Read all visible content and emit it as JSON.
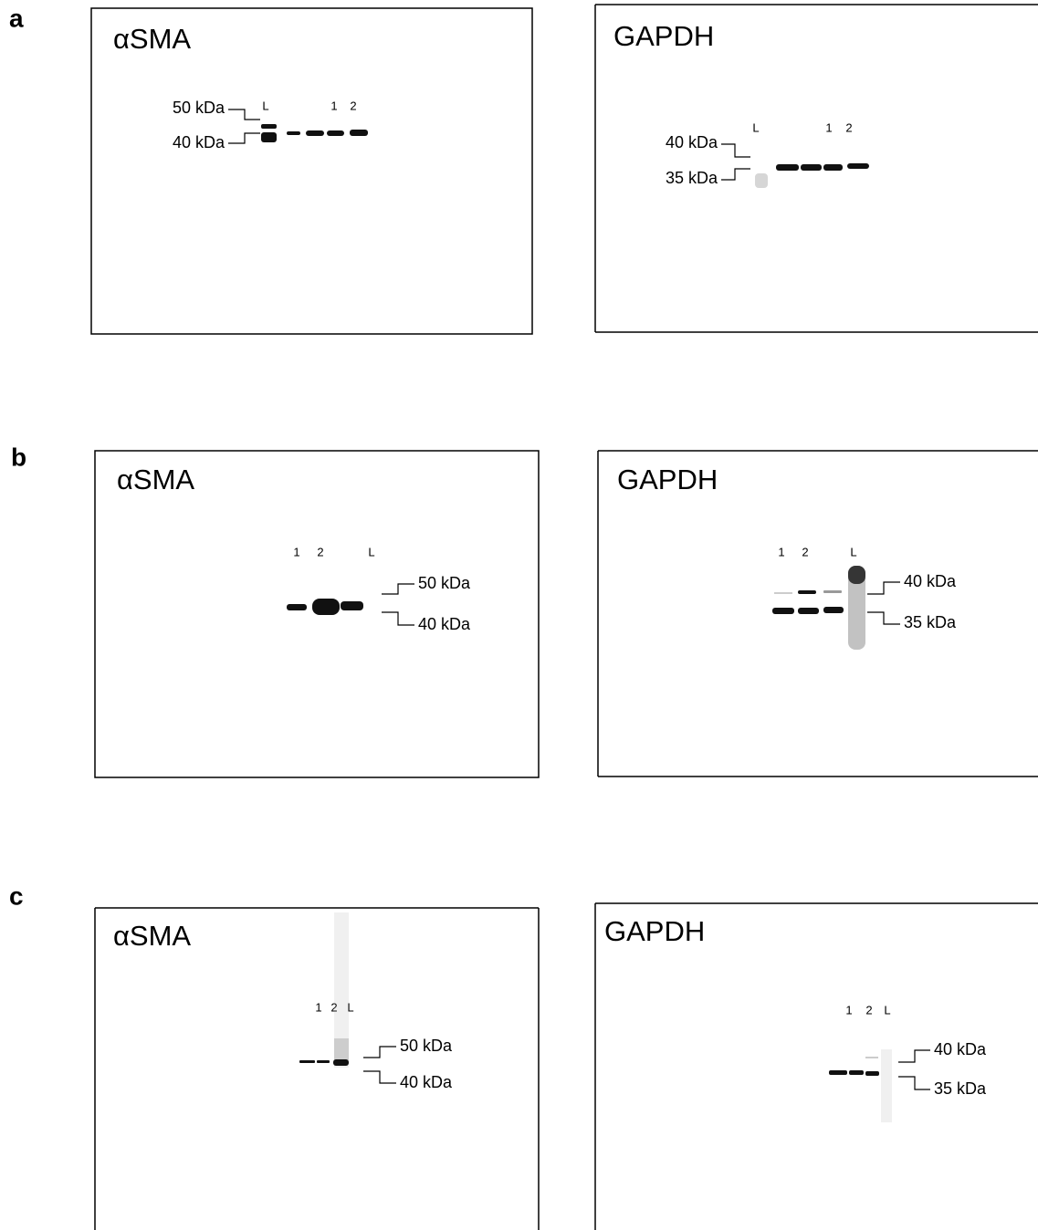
{
  "panels": [
    {
      "label": "a",
      "blots": [
        {
          "title": "αSMA",
          "lanes": [
            "L",
            "1",
            "2"
          ],
          "markers": [
            "50 kDa",
            "40 kDa"
          ]
        },
        {
          "title": "GAPDH",
          "lanes": [
            "L",
            "1",
            "2"
          ],
          "markers": [
            "40 kDa",
            "35 kDa"
          ]
        }
      ]
    },
    {
      "label": "b",
      "blots": [
        {
          "title": "αSMA",
          "lanes": [
            "1",
            "2",
            "L"
          ],
          "markers": [
            "50 kDa",
            "40 kDa"
          ]
        },
        {
          "title": "GAPDH",
          "lanes": [
            "1",
            "2",
            "L"
          ],
          "markers": [
            "40 kDa",
            "35 kDa"
          ]
        }
      ]
    },
    {
      "label": "c",
      "blots": [
        {
          "title": "αSMA",
          "lanes": [
            "1",
            "2",
            "L"
          ],
          "markers": [
            "50 kDa",
            "40 kDa"
          ]
        },
        {
          "title": "GAPDH",
          "lanes": [
            "1",
            "2",
            "L"
          ],
          "markers": [
            "40 kDa",
            "35 kDa"
          ]
        }
      ]
    }
  ]
}
